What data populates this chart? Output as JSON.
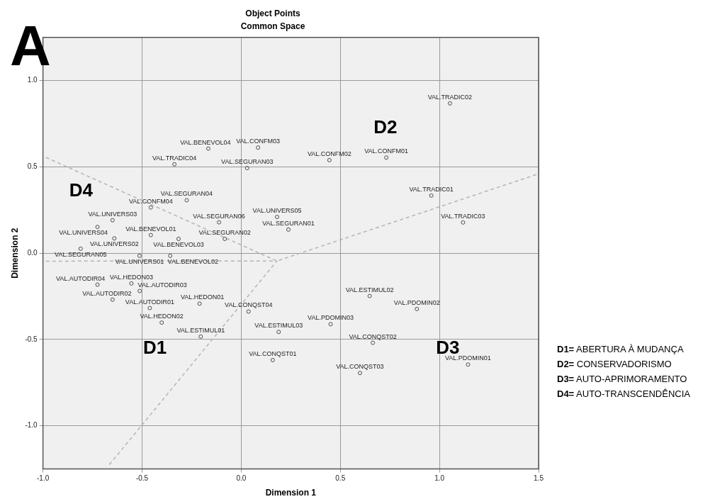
{
  "chart_data": {
    "type": "scatter",
    "title": "Object Points",
    "subtitle": "Common Space",
    "xlabel": "Dimension 1",
    "ylabel": "Dimension 2",
    "xlim": [
      -1,
      1.5
    ],
    "ylim": [
      -1.25,
      1.25
    ],
    "xticks": [
      {
        "value": -1,
        "label": "-1.0"
      },
      {
        "value": -0.5,
        "label": "-0.5"
      },
      {
        "value": 0,
        "label": "0.0"
      },
      {
        "value": 0.5,
        "label": "0.5"
      },
      {
        "value": 1,
        "label": "1.0"
      },
      {
        "value": 1.5,
        "label": "1.5"
      }
    ],
    "yticks": [
      {
        "value": -1,
        "label": "-1.0"
      },
      {
        "value": -0.5,
        "label": "-0.5"
      },
      {
        "value": 0,
        "label": "0.0"
      },
      {
        "value": 0.5,
        "label": "0.5"
      },
      {
        "value": 1,
        "label": "1.0"
      }
    ],
    "grid": true,
    "legend": false,
    "series": [
      {
        "type": "scatter",
        "color": "#4d4d4d",
        "marker": "circle",
        "x": [
          1.053,
          0.085,
          0.445,
          0.732,
          0.959,
          1.119,
          -0.166,
          -0.337,
          0.03,
          -0.275,
          -0.456,
          -0.649,
          -0.725,
          -0.456,
          -0.112,
          -0.083,
          -0.316,
          -0.64,
          -0.81,
          0.181,
          0.238,
          -0.513,
          -0.358,
          -0.554,
          -0.725,
          -0.512,
          -0.649,
          -0.461,
          -0.21,
          -0.401,
          -0.204,
          0.037,
          0.189,
          0.451,
          0.648,
          0.886,
          0.664,
          0.159,
          0.599,
          1.144
        ],
        "values": [
          0.868,
          0.612,
          0.539,
          0.554,
          0.334,
          0.178,
          0.606,
          0.515,
          0.493,
          0.307,
          0.265,
          0.191,
          0.152,
          0.105,
          0.179,
          0.083,
          0.083,
          0.086,
          0.026,
          0.21,
          0.137,
          -0.015,
          -0.015,
          -0.175,
          -0.182,
          -0.219,
          -0.269,
          -0.318,
          -0.292,
          -0.402,
          -0.483,
          -0.338,
          -0.456,
          -0.411,
          -0.248,
          -0.323,
          -0.519,
          -0.619,
          -0.694,
          -0.645
        ],
        "value_labels": [
          "VAL.TRADIC02",
          "VAL.CONFM03",
          "VAL.CONFM02",
          "VAL.CONFM01",
          "VAL.TRADIC01",
          "VAL.TRADIC03",
          "VAL.BENEVOL04",
          "VAL.TRADIC04",
          "VAL.SEGURAN03",
          "VAL.SEGURAN04",
          "VAL.CONFM04",
          "VAL.UNIVERS03",
          "VAL.UNIVERS04",
          "VAL.BENEVOL01",
          "VAL.SEGURAN06",
          "VAL.SEGURAN02",
          "VAL.BENEVOL03",
          "VAL.UNIVERS02",
          "VAL.SEGURAN05",
          "VAL.UNIVERS05",
          "VAL.SEGURAN01",
          "VAL.UNIVERS01",
          "VAL.BENEVOL02",
          "VAL.HEDON03",
          "VAL.AUTODIR04",
          "VAL.AUTODIR03",
          "VAL.AUTODIR02",
          "VAL.AUTODIR01",
          "VAL.HEDON01",
          "VAL.HEDON02",
          "VAL.ESTIMUL01",
          "VAL.CONQST04",
          "VAL.ESTIMUL03",
          "VAL.PDOMIN03",
          "VAL.ESTIMUL02",
          "VAL.PDOMIN02",
          "VAL.CONQST02",
          "VAL.CONQST01",
          "VAL.CONQST03",
          "VAL.PDOMIN01"
        ]
      },
      {
        "type": "line",
        "color": "#b4b4b4",
        "line_style": "dashed",
        "marker": "none",
        "x": [
          -0.985,
          0.18,
          1.5
        ],
        "values": [
          0.555,
          -0.045,
          0.46
        ]
      },
      {
        "type": "line",
        "color": "#b4b4b4",
        "line_style": "dashed",
        "marker": "none",
        "x": [
          -0.985,
          0.18,
          -0.669
        ],
        "values": [
          -0.046,
          -0.045,
          -1.23
        ]
      }
    ],
    "annotations": [
      "A",
      "D4",
      "D2",
      "D1",
      "D3",
      "D1= ABERTURA À MUDANÇA",
      "D2= CONSERVADORISMO",
      "D3= AUTO-APRIMORAMENTO",
      "D4= AUTO-TRANSCENDÊNCIA"
    ]
  }
}
